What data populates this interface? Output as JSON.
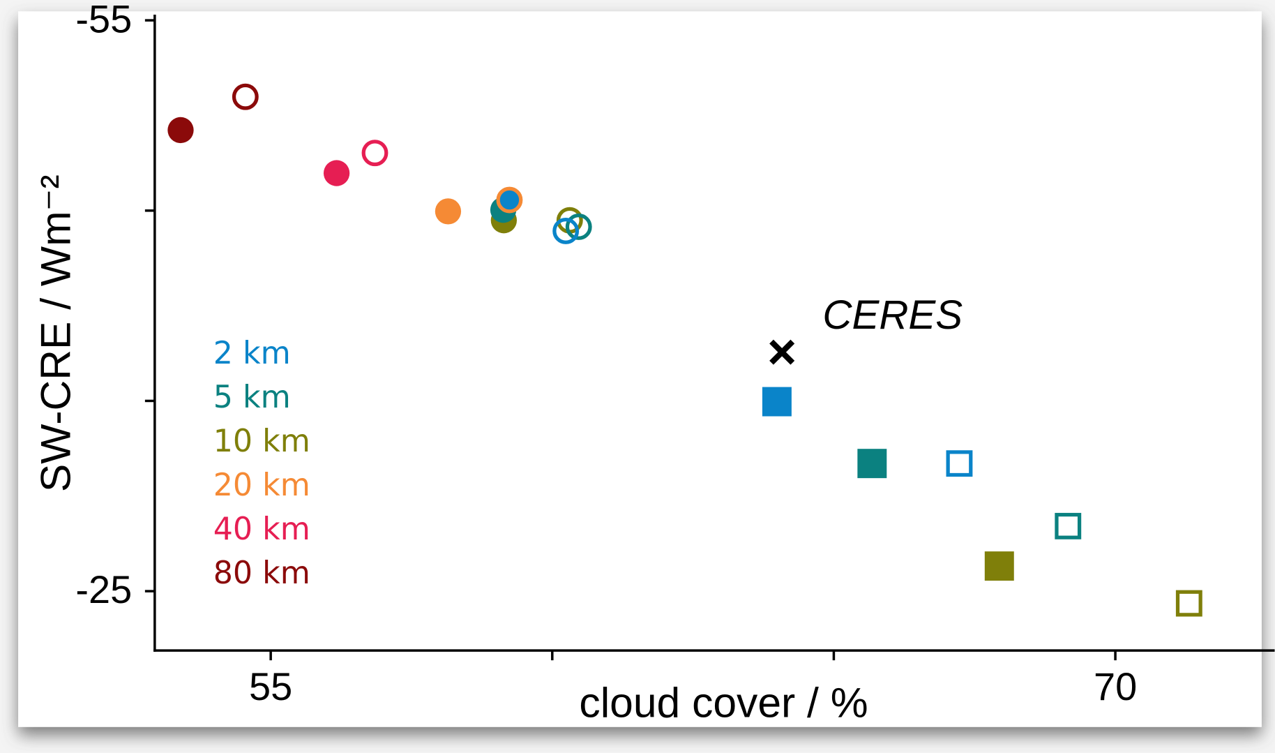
{
  "chart_data": {
    "type": "scatter",
    "x_label": "cloud cover / %",
    "y_label": "SW-CRE / Wm⁻²",
    "xlim": [
      52.94,
      72.83
    ],
    "xticks": [
      55,
      {
        "value": 60,
        "label": null
      },
      {
        "value": 65,
        "label": null
      },
      70
    ],
    "ylim": [
      -21.88,
      -55
    ],
    "yticks": [
      -55,
      {
        "value": -45,
        "label": null
      },
      {
        "value": -35,
        "label": null
      },
      -25
    ],
    "series": [
      {
        "name": "80 km",
        "color": "#8b0a0a",
        "x": [
          53.4,
          54.55
        ],
        "values": [
          -49.23,
          -50.98
        ],
        "markers": [
          "circle",
          "open-circle"
        ]
      },
      {
        "name": "40 km",
        "color": "#e61e53",
        "x": [
          56.17,
          56.85
        ],
        "values": [
          -46.97,
          -48.03
        ],
        "markers": [
          "circle",
          "open-circle"
        ]
      },
      {
        "name": "20 km",
        "color": "#f58a35",
        "x": [
          58.15,
          59.24
        ],
        "values": [
          -44.96,
          -45.56
        ],
        "markers": [
          "circle",
          "open-circle"
        ]
      },
      {
        "name": "10 km",
        "color": "#7f7f0a",
        "x": [
          59.14,
          60.31,
          67.94,
          71.31
        ],
        "values": [
          -44.49,
          -44.49,
          -26.32,
          -24.36
        ],
        "markers": [
          "circle",
          "open-circle",
          "square",
          "open-square"
        ]
      },
      {
        "name": "5 km",
        "color": "#0b8180",
        "x": [
          59.13,
          60.47,
          65.68,
          69.16
        ],
        "values": [
          -45.04,
          -44.15,
          -31.71,
          -28.42
        ],
        "markers": [
          "circle",
          "open-circle",
          "square",
          "open-square"
        ]
      },
      {
        "name": "2 km",
        "color": "#0a84c9",
        "x": [
          59.24,
          60.24,
          63.99,
          67.23
        ],
        "values": [
          -45.56,
          -43.93,
          -34.96,
          -31.71
        ],
        "markers": [
          "circle",
          "open-circle",
          "square",
          "open-square"
        ]
      }
    ],
    "reference": {
      "name": "CERES",
      "x": 64.08,
      "y": -37.56,
      "color": "#000000"
    }
  }
}
